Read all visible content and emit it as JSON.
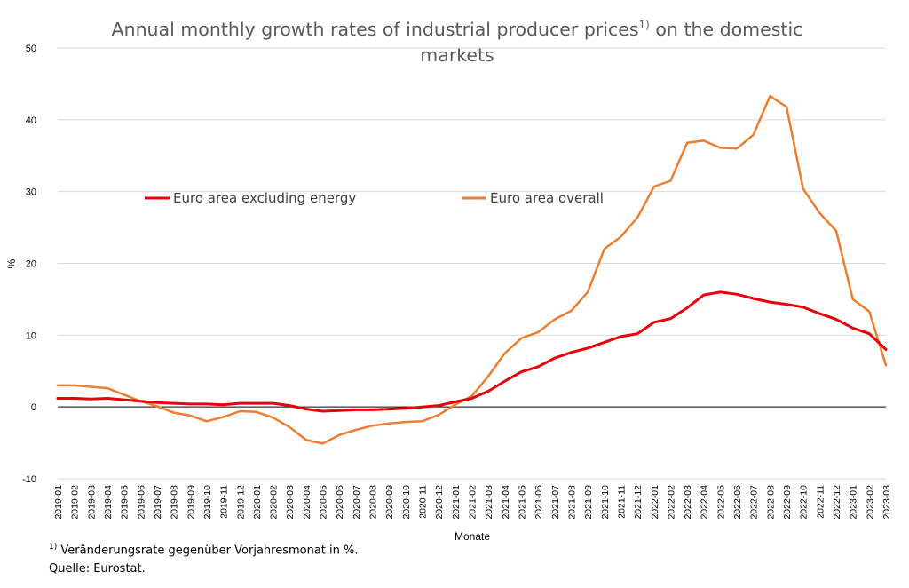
{
  "title": {
    "part1": "Annual monthly growth rates of industrial producer prices",
    "sup": "1)",
    "part2": " on the domestic markets"
  },
  "footnote": {
    "marker": "1)",
    "text": " Veränderungsrate gegenüber Vorjahresmonat in %.",
    "source": "Quelle: Eurostat."
  },
  "chart_data": {
    "type": "line",
    "title": "Annual monthly growth rates of industrial producer prices1) on the domestic markets",
    "xlabel": "Monate",
    "ylabel": "%",
    "ylim": [
      -10,
      50
    ],
    "yticks": [
      -10,
      0,
      10,
      20,
      30,
      40,
      50
    ],
    "grid": true,
    "legend_position": "middle-left, inside plot",
    "categories": [
      "2019-01",
      "2019-02",
      "2019-03",
      "2019-04",
      "2019-05",
      "2019-06",
      "2019-07",
      "2019-08",
      "2019-09",
      "2019-10",
      "2019-11",
      "2019-12",
      "2020-01",
      "2020-02",
      "2020-03",
      "2020-04",
      "2020-05",
      "2020-06",
      "2020-07",
      "2020-08",
      "2020-09",
      "2020-10",
      "2020-11",
      "2020-12",
      "2021-01",
      "2021-02",
      "2021-03",
      "2021-04",
      "2021-05",
      "2021-06",
      "2021-07",
      "2021-08",
      "2021-09",
      "2021-10",
      "2021-11",
      "2021-12",
      "2022-01",
      "2022-02",
      "2022-03",
      "2022-04",
      "2022-05",
      "2022-06",
      "2022-07",
      "2022-08",
      "2022-09",
      "2022-10",
      "2022-11",
      "2022-12",
      "2023-01",
      "2023-02",
      "2023-03"
    ],
    "series": [
      {
        "name": "Euro area excluding energy",
        "color": "#e8000b",
        "values": [
          1.2,
          1.2,
          1.1,
          1.2,
          1.0,
          0.8,
          0.6,
          0.5,
          0.4,
          0.4,
          0.3,
          0.5,
          0.5,
          0.5,
          0.2,
          -0.3,
          -0.6,
          -0.5,
          -0.4,
          -0.4,
          -0.3,
          -0.2,
          0.0,
          0.2,
          0.7,
          1.2,
          2.2,
          3.6,
          4.9,
          5.6,
          6.8,
          7.6,
          8.2,
          9.0,
          9.8,
          10.2,
          11.8,
          12.3,
          13.8,
          15.6,
          16.0,
          15.7,
          15.1,
          14.6,
          14.3,
          13.9,
          13.0,
          12.2,
          11.0,
          10.2,
          8.0
        ]
      },
      {
        "name": "Euro area overall",
        "color": "#ed7d31",
        "values": [
          3.0,
          3.0,
          2.8,
          2.6,
          1.7,
          0.8,
          0.1,
          -0.8,
          -1.2,
          -2.0,
          -1.4,
          -0.6,
          -0.7,
          -1.5,
          -2.8,
          -4.6,
          -5.1,
          -3.9,
          -3.2,
          -2.6,
          -2.3,
          -2.1,
          -2.0,
          -1.1,
          0.3,
          1.5,
          4.3,
          7.5,
          9.6,
          10.4,
          12.2,
          13.4,
          16.0,
          22.0,
          23.7,
          26.4,
          30.7,
          31.5,
          36.8,
          37.1,
          36.1,
          36.0,
          37.9,
          43.3,
          41.8,
          30.4,
          27.0,
          24.5,
          15.0,
          13.3,
          5.8
        ]
      }
    ]
  }
}
